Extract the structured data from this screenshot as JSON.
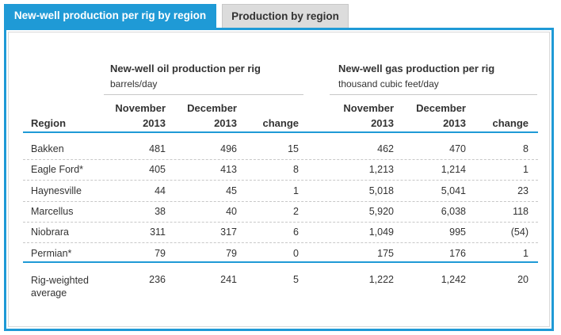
{
  "tabs": [
    {
      "label": "New-well production per rig by region",
      "active": true
    },
    {
      "label": "Production by region",
      "active": false
    }
  ],
  "oil_group": {
    "title": "New-well oil production per rig",
    "unit": "barrels/day"
  },
  "gas_group": {
    "title": "New-well gas production per rig",
    "unit": "thousand cubic feet/day"
  },
  "headers": {
    "region": "Region",
    "oil_nov": [
      "November",
      "2013"
    ],
    "oil_dec": [
      "December",
      "2013"
    ],
    "oil_change": "change",
    "gas_nov": [
      "November",
      "2013"
    ],
    "gas_dec": [
      "December",
      "2013"
    ],
    "gas_change": "change"
  },
  "rows": [
    {
      "region": "Bakken",
      "oil_nov": "481",
      "oil_dec": "496",
      "oil_change": "15",
      "gas_nov": "462",
      "gas_dec": "470",
      "gas_change": "8"
    },
    {
      "region": "Eagle Ford*",
      "oil_nov": "405",
      "oil_dec": "413",
      "oil_change": "8",
      "gas_nov": "1,213",
      "gas_dec": "1,214",
      "gas_change": "1"
    },
    {
      "region": "Haynesville",
      "oil_nov": "44",
      "oil_dec": "45",
      "oil_change": "1",
      "gas_nov": "5,018",
      "gas_dec": "5,041",
      "gas_change": "23"
    },
    {
      "region": "Marcellus",
      "oil_nov": "38",
      "oil_dec": "40",
      "oil_change": "2",
      "gas_nov": "5,920",
      "gas_dec": "6,038",
      "gas_change": "118"
    },
    {
      "region": "Niobrara",
      "oil_nov": "311",
      "oil_dec": "317",
      "oil_change": "6",
      "gas_nov": "1,049",
      "gas_dec": "995",
      "gas_change": "(54)"
    },
    {
      "region": "Permian*",
      "oil_nov": "79",
      "oil_dec": "79",
      "oil_change": "0",
      "gas_nov": "175",
      "gas_dec": "176",
      "gas_change": "1"
    }
  ],
  "total": {
    "region_lines": [
      "Rig-weighted",
      "average"
    ],
    "oil_nov": "236",
    "oil_dec": "241",
    "oil_change": "5",
    "gas_nov": "1,222",
    "gas_dec": "1,242",
    "gas_change": "20"
  },
  "colors": {
    "accent": "#1f9ad6",
    "tab_inactive": "#dcdcdc",
    "divider": "#c8c8c8"
  }
}
